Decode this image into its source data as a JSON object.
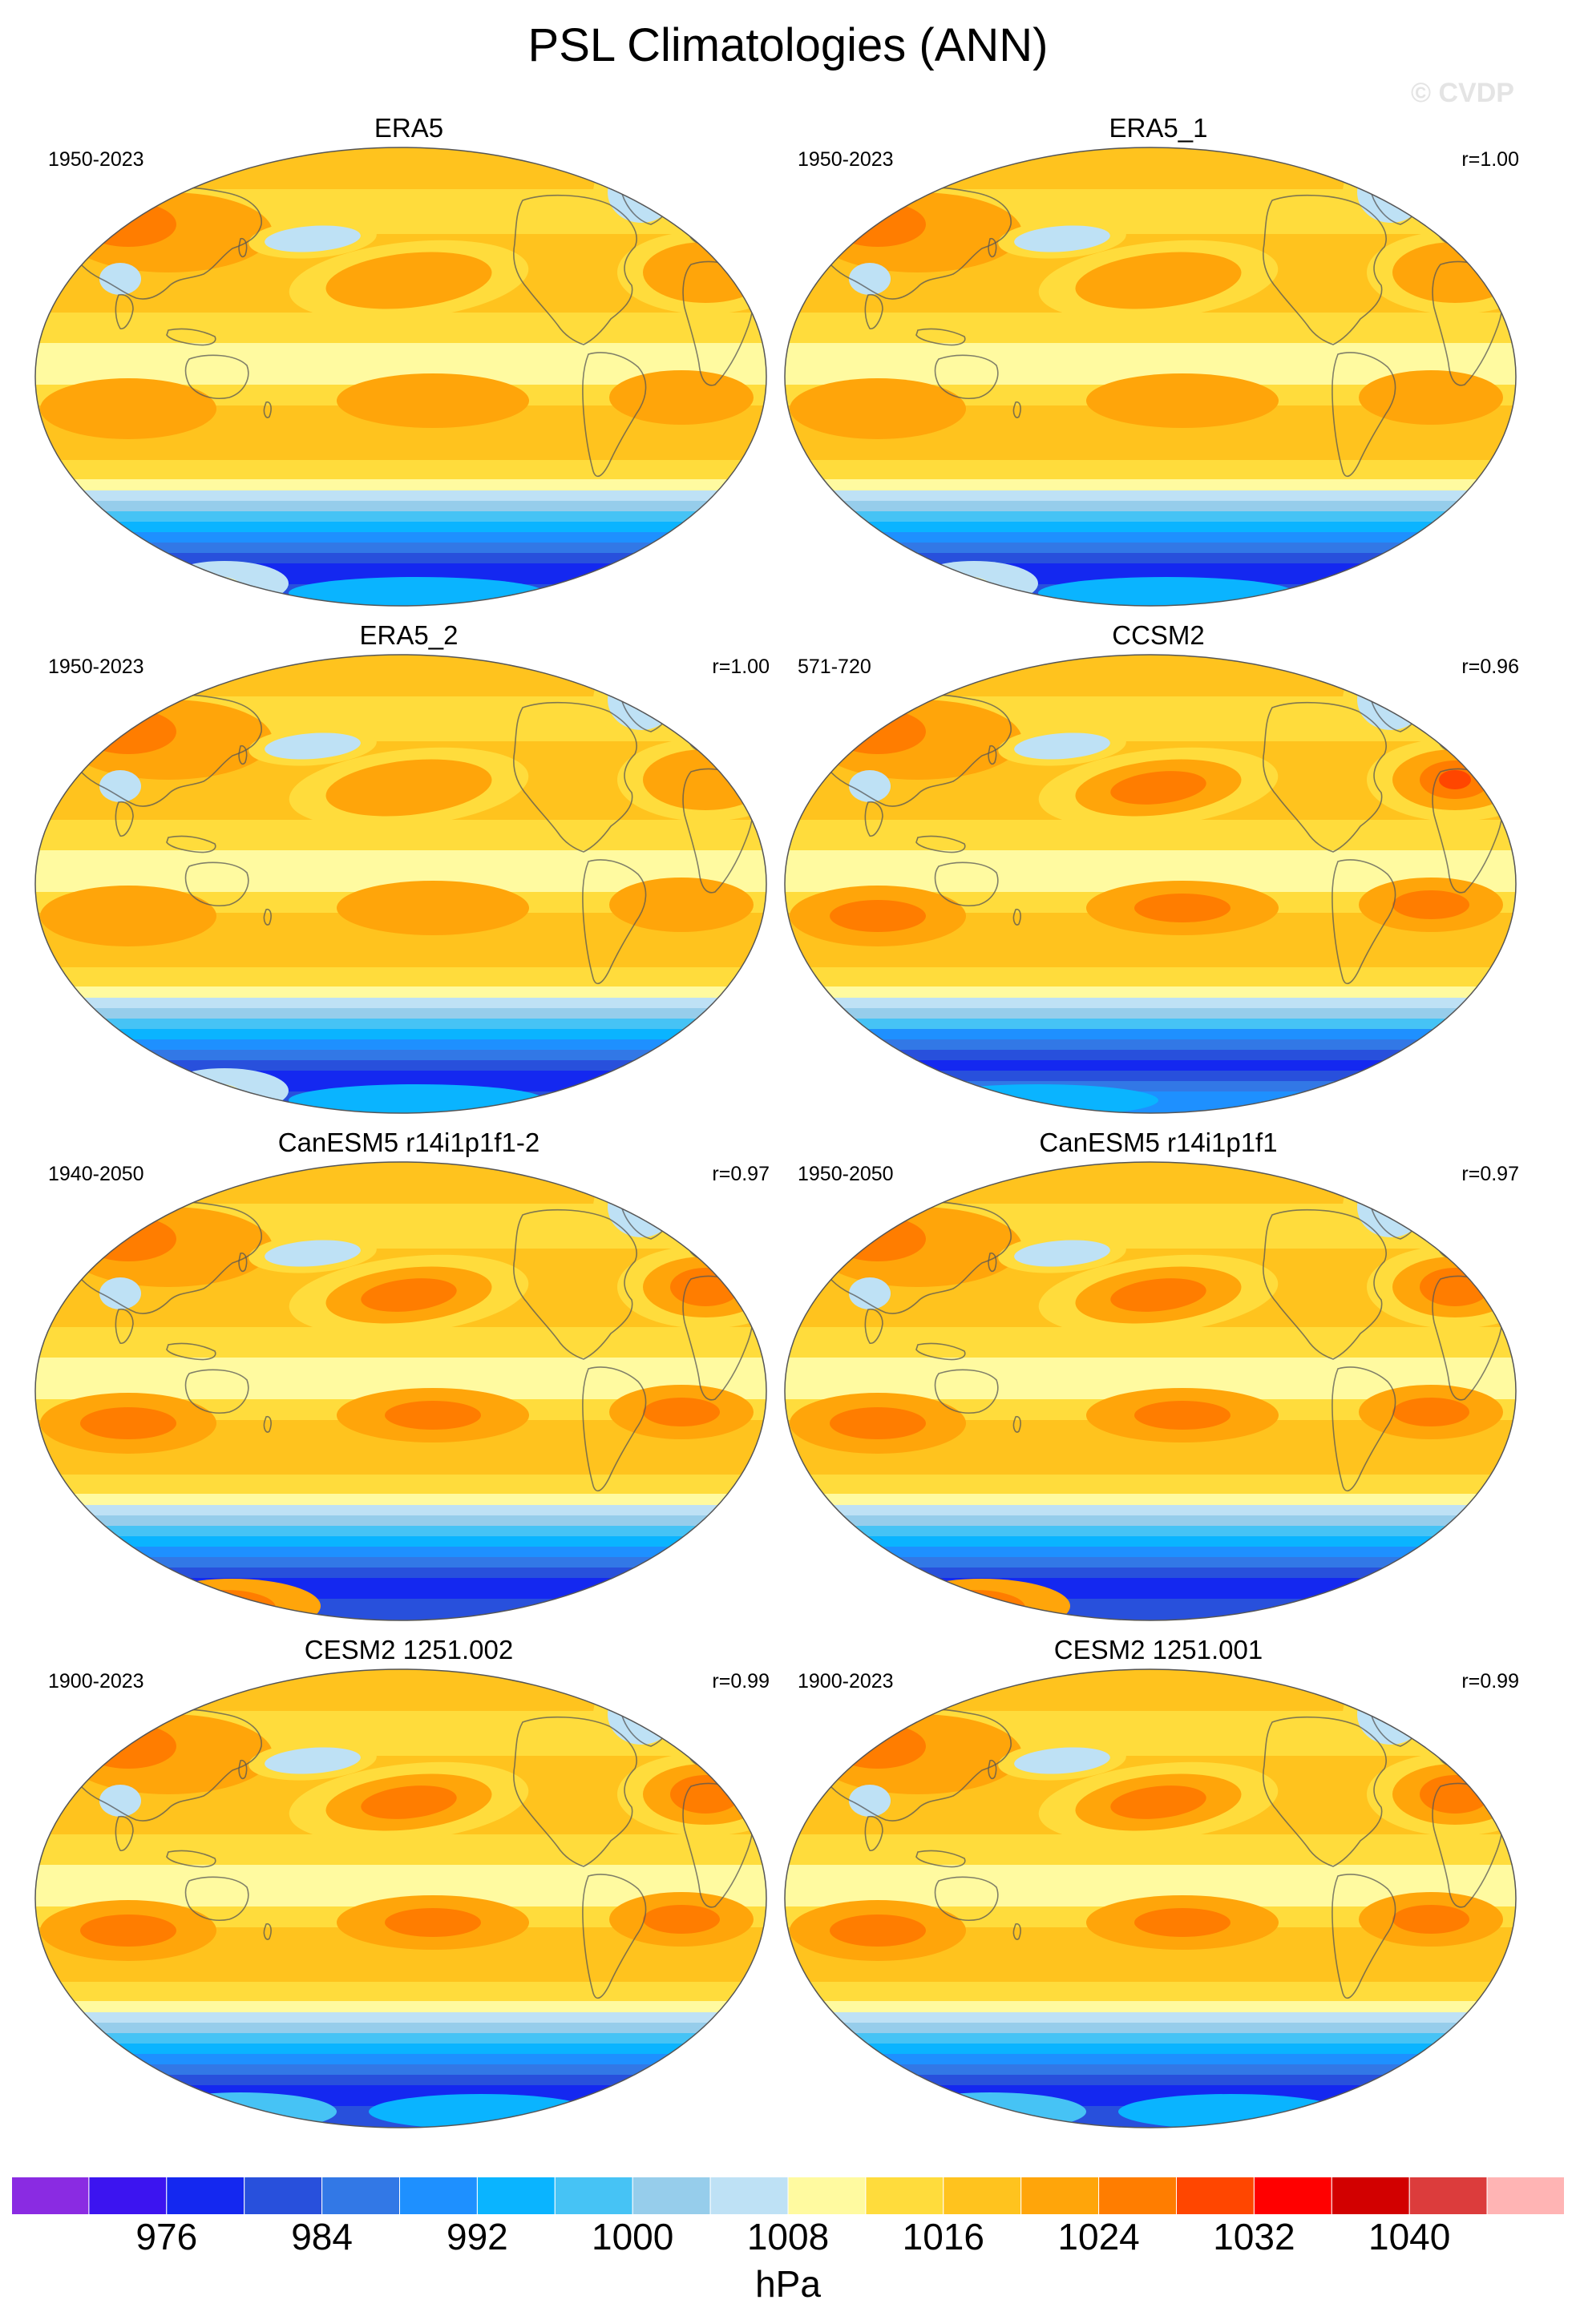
{
  "title": "PSL Climatologies (ANN)",
  "watermark": "© CVDP",
  "panels": [
    {
      "title": "ERA5",
      "years": "1950-2023",
      "corr": "",
      "variant": "obs"
    },
    {
      "title": "ERA5_1",
      "years": "1950-2023",
      "corr": "r=1.00",
      "variant": "obs"
    },
    {
      "title": "ERA5_2",
      "years": "1950-2023",
      "corr": "r=1.00",
      "variant": "obs"
    },
    {
      "title": "CCSM2",
      "years": "571-720",
      "corr": "r=0.96",
      "variant": "ccsm"
    },
    {
      "title": "CanESM5 r14i1p1f1-2",
      "years": "1940-2050",
      "corr": "r=0.97",
      "variant": "canesm"
    },
    {
      "title": "CanESM5 r14i1p1f1",
      "years": "1950-2050",
      "corr": "r=0.97",
      "variant": "canesm"
    },
    {
      "title": "CESM2 1251.002",
      "years": "1900-2023",
      "corr": "r=0.99",
      "variant": "cesm"
    },
    {
      "title": "CESM2 1251.001",
      "years": "1900-2023",
      "corr": "r=0.99",
      "variant": "cesm"
    }
  ],
  "colorbar": {
    "units": "hPa",
    "tick_labels": [
      "976",
      "984",
      "992",
      "1000",
      "1008",
      "1016",
      "1024",
      "1032",
      "1040"
    ],
    "colors": [
      "#8a2be2",
      "#3c14f0",
      "#1428f0",
      "#2850dc",
      "#3278e6",
      "#1e90ff",
      "#0ab4ff",
      "#46c3f5",
      "#96cdeb",
      "#bee1f5",
      "#fffaa0",
      "#ffdc3c",
      "#ffc31e",
      "#ffa50a",
      "#ff7d00",
      "#ff4600",
      "#ff0000",
      "#d20000",
      "#dc3c3c",
      "#ffb4b4"
    ]
  }
}
